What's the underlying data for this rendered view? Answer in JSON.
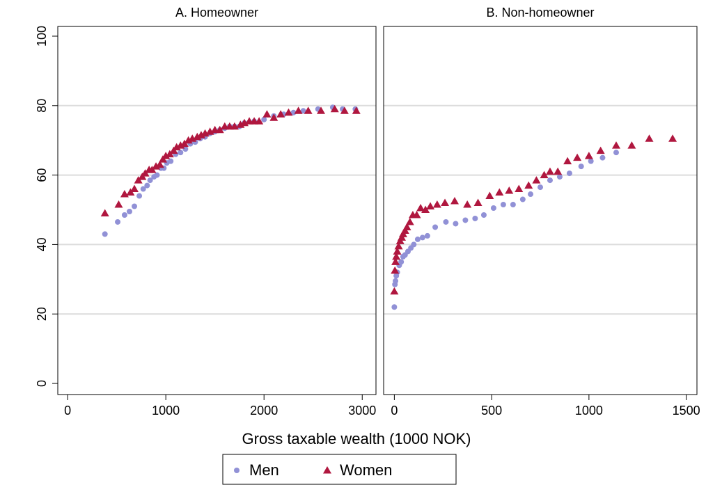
{
  "chart_data": [
    {
      "type": "scatter",
      "title": "A. Homeowner",
      "xlabel": "Gross taxable wealth (1000 NOK)",
      "xlim": [
        -100,
        3140
      ],
      "ylim": [
        -3.2,
        102.8
      ],
      "xticks": [
        0,
        1000,
        2000,
        3000
      ],
      "yticks": [
        0,
        20,
        40,
        60,
        80,
        100
      ],
      "grid": true,
      "series": [
        {
          "name": "Men",
          "color": "#9191d6",
          "marker": "circle",
          "x": [
            380,
            510,
            580,
            630,
            680,
            730,
            770,
            810,
            840,
            880,
            910,
            950,
            980,
            1010,
            1050,
            1100,
            1150,
            1200,
            1250,
            1300,
            1350,
            1400,
            1450,
            1500,
            1550,
            1600,
            1650,
            1700,
            1750,
            1800,
            1900,
            2000,
            2100,
            2200,
            2300,
            2400,
            2550,
            2700,
            2800,
            2930
          ],
          "values": [
            43,
            46.5,
            48.5,
            49.5,
            51,
            54,
            56,
            57,
            58.5,
            59.5,
            60,
            62,
            62,
            63.5,
            64,
            66,
            66.5,
            67.5,
            69,
            69.5,
            70.5,
            71,
            72,
            72.5,
            73,
            73.5,
            74,
            74,
            74,
            75,
            75.5,
            76,
            77,
            77.5,
            78,
            78.5,
            79,
            79.5,
            79,
            79
          ]
        },
        {
          "name": "Women",
          "color": "#b0173f",
          "marker": "triangle",
          "x": [
            380,
            520,
            580,
            640,
            680,
            720,
            760,
            790,
            830,
            860,
            900,
            940,
            970,
            1000,
            1040,
            1080,
            1110,
            1150,
            1190,
            1230,
            1270,
            1320,
            1360,
            1400,
            1450,
            1500,
            1550,
            1600,
            1650,
            1700,
            1760,
            1800,
            1850,
            1900,
            1950,
            2030,
            2100,
            2170,
            2250,
            2350,
            2450,
            2580,
            2720,
            2820,
            2940
          ],
          "values": [
            49,
            51.5,
            54.5,
            55,
            56,
            58.5,
            59.5,
            60.5,
            61.5,
            61.5,
            62.5,
            63,
            64.5,
            65.5,
            66,
            67,
            68,
            68.5,
            69,
            70,
            70.5,
            71,
            71.5,
            72,
            72.5,
            73,
            73,
            74,
            74,
            74,
            74.5,
            75,
            75.5,
            75.5,
            75.5,
            77.5,
            76.5,
            77.5,
            78,
            78.5,
            78.5,
            78.5,
            79,
            78.5,
            78.5
          ]
        }
      ]
    },
    {
      "type": "scatter",
      "title": "B. Non-homeowner",
      "xlim": [
        -55,
        1555
      ],
      "ylim": [
        -3.2,
        102.8
      ],
      "xticks": [
        0,
        500,
        1000,
        1500
      ],
      "yticks": [
        0,
        20,
        40,
        60,
        80,
        100
      ],
      "grid": true,
      "series": [
        {
          "color": "#9191d6",
          "marker": "circle",
          "x": [
            0,
            3,
            6,
            10,
            15,
            25,
            35,
            45,
            55,
            70,
            85,
            100,
            120,
            145,
            170,
            210,
            265,
            315,
            365,
            415,
            460,
            510,
            560,
            610,
            660,
            700,
            750,
            800,
            850,
            900,
            960,
            1010,
            1070,
            1140
          ],
          "values": [
            22,
            28.5,
            29.5,
            31,
            32,
            34,
            35,
            36.5,
            37,
            38,
            39,
            40,
            41.5,
            42,
            42.5,
            45,
            46.5,
            46,
            47,
            47.5,
            48.5,
            50.5,
            51.5,
            51.5,
            53,
            54.5,
            56.5,
            58.5,
            59.5,
            60.5,
            62.5,
            64,
            65,
            66.5
          ]
        },
        {
          "color": "#b0173f",
          "marker": "triangle",
          "x": [
            0,
            3,
            6,
            10,
            15,
            22,
            30,
            38,
            45,
            55,
            65,
            80,
            95,
            115,
            135,
            160,
            185,
            220,
            260,
            310,
            375,
            430,
            490,
            540,
            590,
            640,
            690,
            730,
            770,
            800,
            840,
            890,
            940,
            1000,
            1060,
            1140,
            1220,
            1310,
            1430
          ],
          "values": [
            26.5,
            32.5,
            35,
            36.5,
            38,
            39.5,
            41,
            42,
            43,
            44,
            45,
            46.5,
            48.5,
            48.5,
            50.5,
            50,
            51,
            51.5,
            52,
            52.5,
            51.5,
            52,
            54,
            55,
            55.5,
            56,
            57,
            58.5,
            60,
            61,
            61,
            64,
            65,
            65.5,
            67,
            68.5,
            68.5,
            70.5,
            70.5
          ]
        }
      ]
    }
  ]
}
